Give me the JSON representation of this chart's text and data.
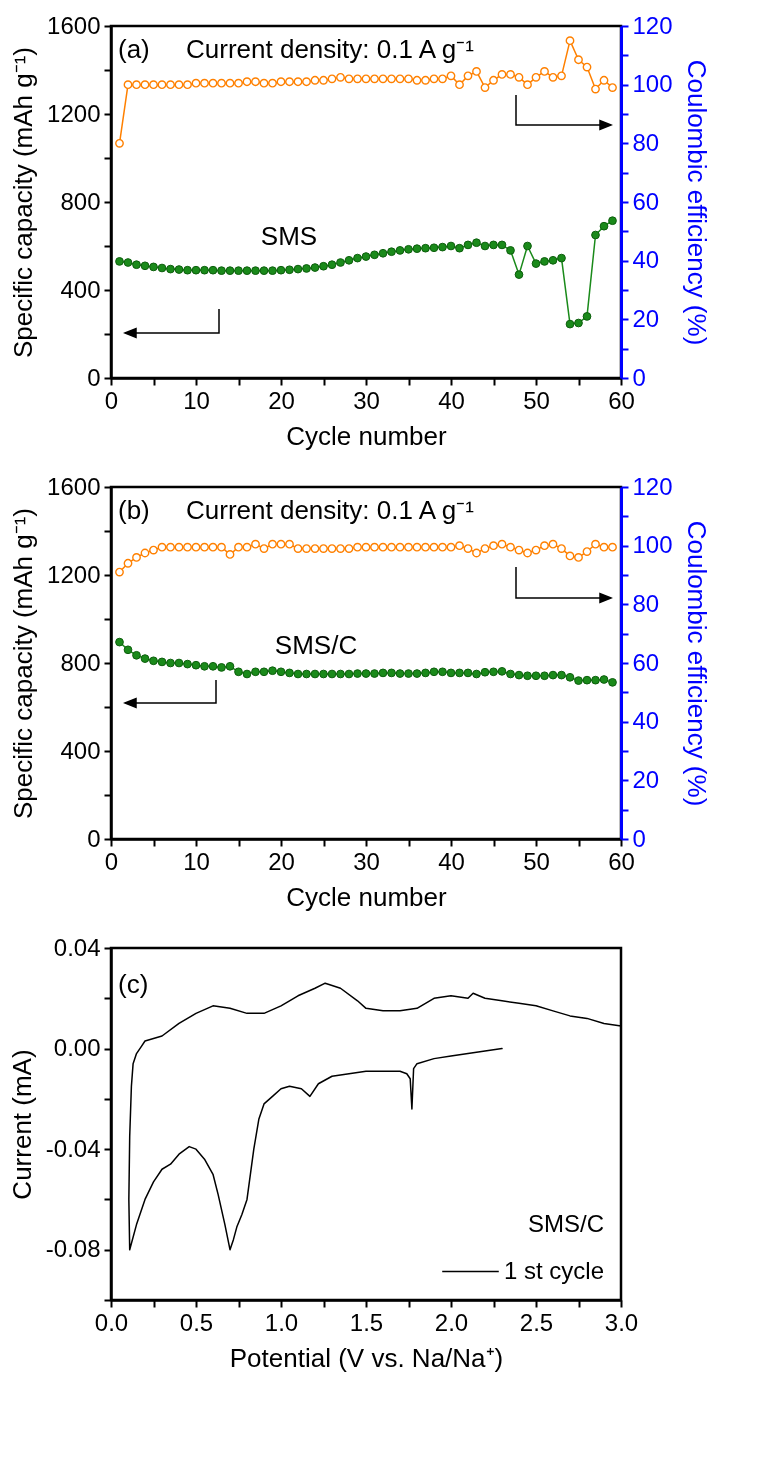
{
  "chart_data": [
    {
      "type": "line",
      "xlabel": "Cycle number",
      "ylabel": "Specific capacity (mAh g⁻¹)",
      "y2label": "Coulombic efficiency (%)",
      "annotations": [
        "(a)",
        "Current density: 0.1 A g⁻¹",
        "SMS"
      ],
      "marker": "circle",
      "x": [
        1,
        2,
        3,
        4,
        5,
        6,
        7,
        8,
        9,
        10,
        11,
        12,
        13,
        14,
        15,
        16,
        17,
        18,
        19,
        20,
        21,
        22,
        23,
        24,
        25,
        26,
        27,
        28,
        29,
        30,
        31,
        32,
        33,
        34,
        35,
        36,
        37,
        38,
        39,
        40,
        41,
        42,
        43,
        44,
        45,
        46,
        47,
        48,
        49,
        50,
        51,
        52,
        53,
        54,
        55,
        56,
        57,
        58,
        59
      ],
      "xlim": [
        0,
        60
      ],
      "xticks": [
        0,
        {
          "value": 5,
          "label": null
        },
        10,
        {
          "value": 15,
          "label": null
        },
        20,
        {
          "value": 25,
          "label": null
        },
        30,
        {
          "value": 35,
          "label": null
        },
        40,
        {
          "value": 45,
          "label": null
        },
        50,
        {
          "value": 55,
          "label": null
        },
        60
      ],
      "ylim": [
        0,
        1600
      ],
      "yticks": [
        0,
        {
          "value": 200,
          "label": null
        },
        400,
        {
          "value": 600,
          "label": null
        },
        800,
        {
          "value": 1000,
          "label": null
        },
        1200,
        {
          "value": 1400,
          "label": null
        },
        1600
      ],
      "y2lim": [
        0,
        120
      ],
      "y2ticks": [
        0,
        {
          "value": 10,
          "label": null
        },
        20,
        {
          "value": 30,
          "label": null
        },
        40,
        {
          "value": 50,
          "label": null
        },
        60,
        {
          "value": 70,
          "label": null
        },
        80,
        {
          "value": 90,
          "label": null
        },
        100,
        {
          "value": 110,
          "label": null
        },
        120
      ],
      "series": [
        {
          "color": "#1a8a1a",
          "values": [
            530,
            525,
            515,
            510,
            505,
            500,
            495,
            493,
            490,
            490,
            490,
            490,
            488,
            488,
            488,
            488,
            488,
            488,
            488,
            490,
            492,
            495,
            498,
            502,
            508,
            515,
            525,
            535,
            545,
            552,
            560,
            567,
            574,
            580,
            585,
            588,
            590,
            592,
            595,
            600,
            590,
            605,
            615,
            600,
            605,
            605,
            580,
            470,
            600,
            520,
            530,
            535,
            545,
            245,
            250,
            280,
            650,
            690,
            715
          ]
        },
        {
          "color": "#ff8000",
          "axis": "y2",
          "values": [
            80,
            100,
            100,
            100,
            100,
            100,
            100,
            100,
            100,
            100.5,
            100.5,
            100.5,
            100.5,
            100.5,
            100.5,
            101,
            101,
            100.5,
            100.5,
            101,
            101,
            101,
            101,
            101.5,
            101.5,
            102,
            102.5,
            102,
            102,
            102,
            102,
            102,
            102,
            102,
            102,
            101.5,
            101.5,
            102,
            102,
            103,
            100,
            103,
            104.5,
            99,
            101.5,
            103.5,
            103.5,
            102.5,
            100,
            102.5,
            104.5,
            102.5,
            103,
            115,
            108.5,
            106,
            98.5,
            101.5,
            99
          ]
        }
      ]
    },
    {
      "type": "line",
      "xlabel": "Cycle number",
      "ylabel": "Specific capacity (mAh g⁻¹)",
      "y2label": "Coulombic efficiency (%)",
      "annotations": [
        "(b)",
        "Current density: 0.1 A g⁻¹",
        "SMS/C"
      ],
      "marker": "circle",
      "x": [
        1,
        2,
        3,
        4,
        5,
        6,
        7,
        8,
        9,
        10,
        11,
        12,
        13,
        14,
        15,
        16,
        17,
        18,
        19,
        20,
        21,
        22,
        23,
        24,
        25,
        26,
        27,
        28,
        29,
        30,
        31,
        32,
        33,
        34,
        35,
        36,
        37,
        38,
        39,
        40,
        41,
        42,
        43,
        44,
        45,
        46,
        47,
        48,
        49,
        50,
        51,
        52,
        53,
        54,
        55,
        56,
        57,
        58,
        59
      ],
      "xlim": [
        0,
        60
      ],
      "xticks": [
        0,
        {
          "value": 5,
          "label": null
        },
        10,
        {
          "value": 15,
          "label": null
        },
        20,
        {
          "value": 25,
          "label": null
        },
        30,
        {
          "value": 35,
          "label": null
        },
        40,
        {
          "value": 45,
          "label": null
        },
        50,
        {
          "value": 55,
          "label": null
        },
        60
      ],
      "ylim": [
        0,
        1600
      ],
      "yticks": [
        0,
        {
          "value": 200,
          "label": null
        },
        400,
        {
          "value": 600,
          "label": null
        },
        800,
        {
          "value": 1000,
          "label": null
        },
        1200,
        {
          "value": 1400,
          "label": null
        },
        1600
      ],
      "y2lim": [
        0,
        120
      ],
      "y2ticks": [
        0,
        {
          "value": 10,
          "label": null
        },
        20,
        {
          "value": 30,
          "label": null
        },
        40,
        {
          "value": 50,
          "label": null
        },
        60,
        {
          "value": 70,
          "label": null
        },
        80,
        {
          "value": 90,
          "label": null
        },
        100,
        {
          "value": 110,
          "label": null
        },
        120
      ],
      "series": [
        {
          "color": "#1a8a1a",
          "values": [
            895,
            860,
            835,
            820,
            810,
            805,
            800,
            800,
            795,
            790,
            785,
            785,
            780,
            785,
            760,
            750,
            760,
            760,
            765,
            760,
            755,
            750,
            750,
            750,
            750,
            750,
            750,
            750,
            752,
            752,
            752,
            755,
            755,
            752,
            752,
            752,
            755,
            760,
            760,
            755,
            755,
            755,
            750,
            758,
            760,
            762,
            750,
            745,
            742,
            742,
            742,
            745,
            745,
            735,
            720,
            722,
            722,
            725,
            712
          ]
        },
        {
          "color": "#ff8000",
          "axis": "y2",
          "values": [
            91,
            94,
            96,
            97.5,
            98.5,
            99.5,
            99.5,
            99.5,
            99.5,
            99.5,
            99.5,
            99.5,
            99.5,
            97,
            99.5,
            99.5,
            100.5,
            99,
            100.5,
            100.5,
            100.5,
            99,
            99,
            99,
            99,
            99,
            99,
            99,
            99.5,
            99.5,
            99.5,
            99.5,
            99.5,
            99.5,
            99.5,
            99.5,
            99.5,
            99.5,
            99.5,
            99.5,
            100,
            99,
            97.5,
            99,
            100,
            100.5,
            99.5,
            98.5,
            97.5,
            98.5,
            100,
            100.5,
            99,
            96.5,
            96,
            98,
            100.5,
            99.5,
            99.5
          ]
        }
      ]
    },
    {
      "type": "line",
      "xlabel": "Potential (V vs. Na/Na⁺)",
      "ylabel": "Current (mA)",
      "annotations": [
        "(c)"
      ],
      "legend": "bottom right",
      "legend_title": "SMS/C",
      "marker": "none",
      "xlim": [
        0,
        3
      ],
      "xticks": [
        {
          "value": 0,
          "label": "0.0"
        },
        {
          "value": 0.25,
          "label": null
        },
        0.5,
        {
          "value": 0.75,
          "label": null
        },
        {
          "value": 1,
          "label": "1.0"
        },
        {
          "value": 1.25,
          "label": null
        },
        1.5,
        {
          "value": 1.75,
          "label": null
        },
        {
          "value": 2,
          "label": "2.0"
        },
        {
          "value": 2.25,
          "label": null
        },
        2.5,
        {
          "value": 2.75,
          "label": null
        },
        {
          "value": 3,
          "label": "3.0"
        }
      ],
      "ylim": [
        -0.1,
        0.04
      ],
      "yticks": [
        {
          "value": -0.1,
          "label": null
        },
        -0.08,
        {
          "value": -0.06,
          "label": null
        },
        -0.04,
        {
          "value": -0.02,
          "label": null
        },
        {
          "value": 0,
          "label": "0.00"
        },
        {
          "value": 0.02,
          "label": null
        },
        0.04
      ],
      "series": [
        {
          "name": "1 st cycle",
          "color": "#000000",
          "x": [
            2.3,
            2.2,
            2.1,
            2.0,
            1.9,
            1.8,
            1.78,
            1.77,
            1.76,
            1.74,
            1.7,
            1.6,
            1.5,
            1.4,
            1.3,
            1.22,
            1.17,
            1.12,
            1.05,
            1.0,
            0.95,
            0.9,
            0.87,
            0.84,
            0.8,
            0.77,
            0.74,
            0.72,
            0.7,
            0.67,
            0.63,
            0.6,
            0.55,
            0.5,
            0.46,
            0.4,
            0.35,
            0.3,
            0.25,
            0.2,
            0.15,
            0.11,
            0.105,
            0.11,
            0.12,
            0.13,
            0.15,
            0.18,
            0.2,
            0.3,
            0.4,
            0.5,
            0.6,
            0.7,
            0.8,
            0.9,
            1.0,
            1.1,
            1.2,
            1.26,
            1.35,
            1.45,
            1.5,
            1.6,
            1.7,
            1.8,
            1.9,
            2.0,
            2.1,
            2.13,
            2.2,
            2.3,
            2.4,
            2.5,
            2.6,
            2.7,
            2.8,
            2.9,
            3.0
          ],
          "values": [
            0.0,
            -0.001,
            -0.002,
            -0.003,
            -0.004,
            -0.006,
            -0.008,
            -0.024,
            -0.012,
            -0.01,
            -0.009,
            -0.009,
            -0.009,
            -0.01,
            -0.011,
            -0.014,
            -0.019,
            -0.016,
            -0.015,
            -0.016,
            -0.019,
            -0.022,
            -0.028,
            -0.04,
            -0.06,
            -0.066,
            -0.071,
            -0.076,
            -0.08,
            -0.07,
            -0.058,
            -0.05,
            -0.044,
            -0.04,
            -0.039,
            -0.042,
            -0.046,
            -0.048,
            -0.053,
            -0.06,
            -0.07,
            -0.08,
            -0.06,
            -0.035,
            -0.015,
            -0.006,
            -0.002,
            0.001,
            0.003,
            0.005,
            0.01,
            0.014,
            0.017,
            0.016,
            0.014,
            0.014,
            0.017,
            0.021,
            0.024,
            0.026,
            0.024,
            0.019,
            0.016,
            0.015,
            0.015,
            0.016,
            0.02,
            0.021,
            0.02,
            0.022,
            0.02,
            0.019,
            0.018,
            0.017,
            0.015,
            0.013,
            0.012,
            0.01,
            0.009
          ]
        }
      ]
    }
  ]
}
